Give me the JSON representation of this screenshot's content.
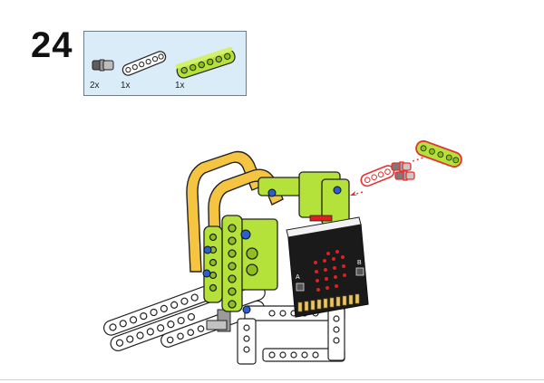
{
  "step": {
    "number": "24"
  },
  "parts_list": {
    "items": [
      {
        "name": "connector-peg",
        "qty": "2x",
        "color": "#8a8a8a"
      },
      {
        "name": "white-beam",
        "qty": "1x",
        "color": "#ffffff"
      },
      {
        "name": "green-beam",
        "qty": "1x",
        "color": "#b5e23a"
      }
    ]
  },
  "colors": {
    "background": "#ffffff",
    "parts_box_bg": "#dbecf9",
    "lime": "#b5e23a",
    "yellow": "#f5c542",
    "white_beam": "#ffffff",
    "board_black": "#1a1a1a",
    "led_red": "#e02020",
    "callout_red": "#e53030"
  },
  "microbit": {
    "label_a": "A",
    "label_b": "B"
  }
}
